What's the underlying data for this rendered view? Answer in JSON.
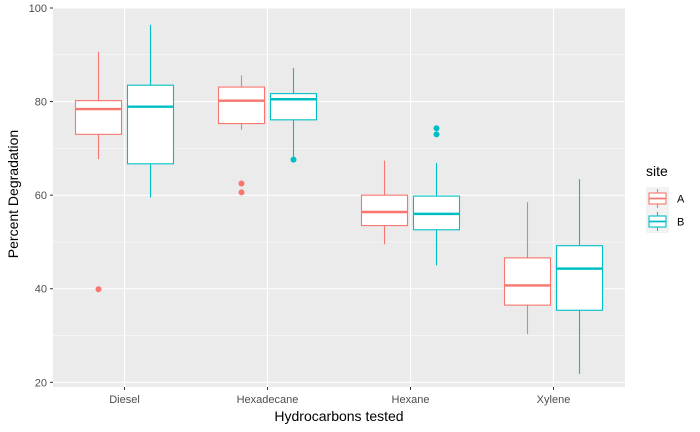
{
  "chart_data": {
    "type": "boxplot",
    "xlabel": "Hydrocarbons tested",
    "ylabel": "Percent Degradation",
    "ylim": [
      19,
      100
    ],
    "yticks": [
      20,
      40,
      60,
      80,
      100
    ],
    "categories": [
      "Diesel",
      "Hexadecane",
      "Hexane",
      "Xylene"
    ],
    "grid": true,
    "legend": {
      "title": "site",
      "position": "right"
    },
    "series": [
      {
        "name": "A",
        "color": "#F8766D",
        "boxes": [
          {
            "min": 67.7,
            "q1": 73.0,
            "median": 78.4,
            "q3": 80.2,
            "max": 90.6,
            "outliers": [
              39.9
            ]
          },
          {
            "min": 74.0,
            "q1": 75.3,
            "median": 80.2,
            "q3": 83.1,
            "max": 85.6,
            "outliers": [
              62.5,
              60.6
            ]
          },
          {
            "min": 49.5,
            "q1": 53.5,
            "median": 56.4,
            "q3": 60.0,
            "max": 67.4,
            "outliers": []
          },
          {
            "min": 30.3,
            "q1": 36.5,
            "median": 40.7,
            "q3": 46.6,
            "max": 58.5,
            "outliers": []
          }
        ]
      },
      {
        "name": "B",
        "color": "#00BFC4",
        "boxes": [
          {
            "min": 59.5,
            "q1": 66.7,
            "median": 78.9,
            "q3": 83.5,
            "max": 96.4,
            "outliers": []
          },
          {
            "min": 67.7,
            "q1": 76.1,
            "median": 80.5,
            "q3": 81.7,
            "max": 87.2,
            "outliers": [
              67.6
            ]
          },
          {
            "min": 45.0,
            "q1": 52.6,
            "median": 56.0,
            "q3": 59.8,
            "max": 66.9,
            "outliers": [
              74.3,
              73.0
            ]
          },
          {
            "min": 21.8,
            "q1": 35.4,
            "median": 44.3,
            "q3": 49.2,
            "max": 63.4,
            "outliers": []
          }
        ]
      }
    ]
  }
}
